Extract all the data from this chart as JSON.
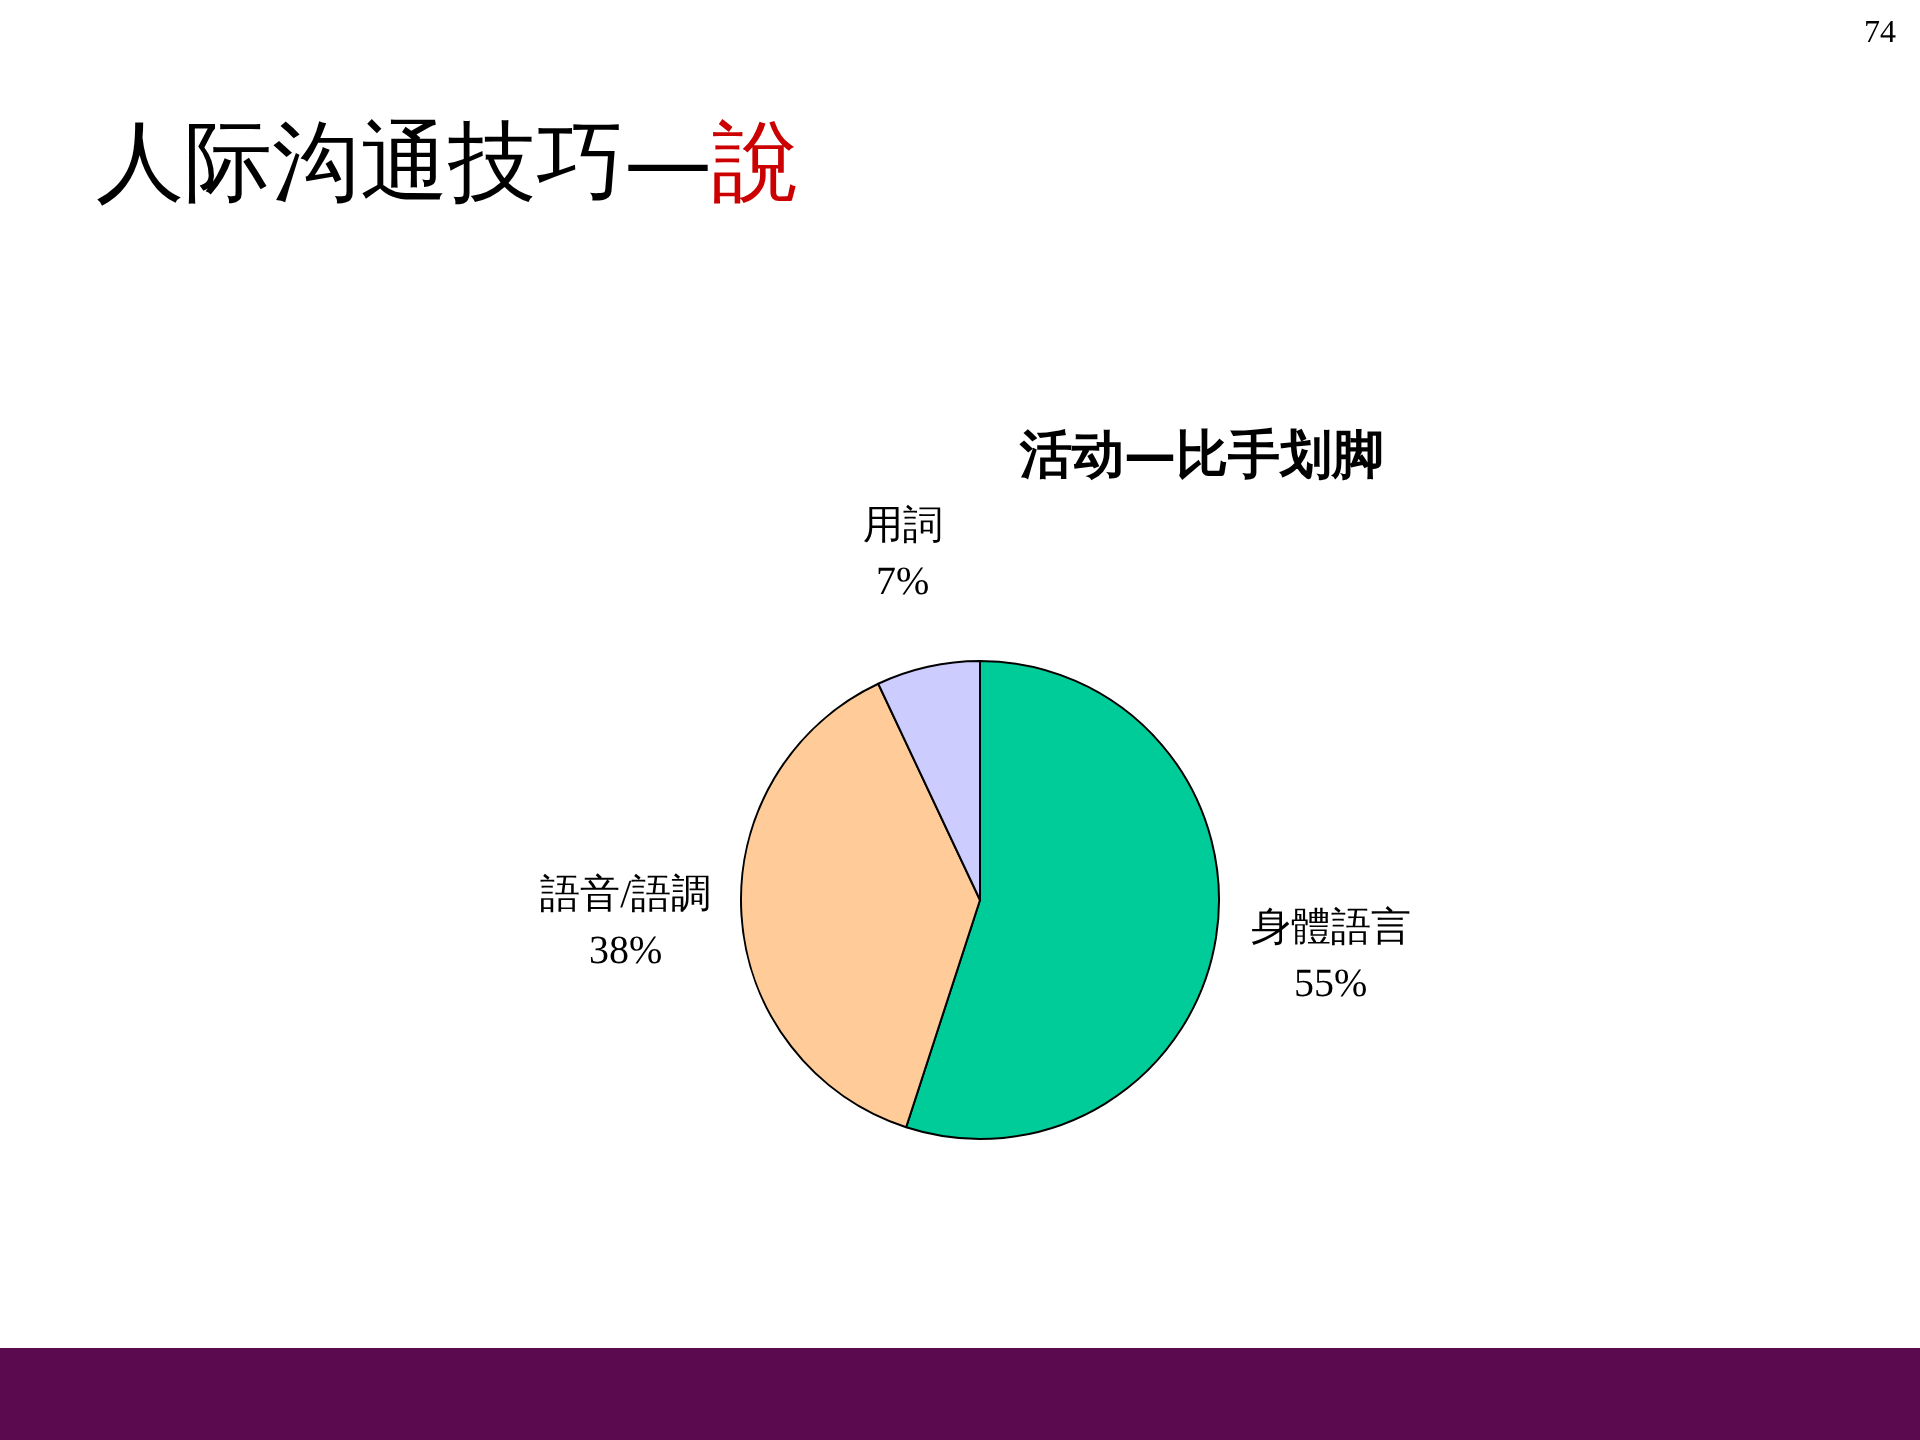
{
  "chart_data": {
    "type": "pie",
    "title": "人际沟通技巧—說",
    "subtitle": "活动—比手划脚",
    "categories": [
      "身體語言",
      "語音/語調",
      "用詞"
    ],
    "values": [
      55,
      38,
      7
    ],
    "value_labels": [
      "55%",
      "38%",
      "7%"
    ],
    "colors": [
      "#00cc99",
      "#ffcc99",
      "#ccccff"
    ],
    "annotations": [
      "74"
    ]
  }
}
